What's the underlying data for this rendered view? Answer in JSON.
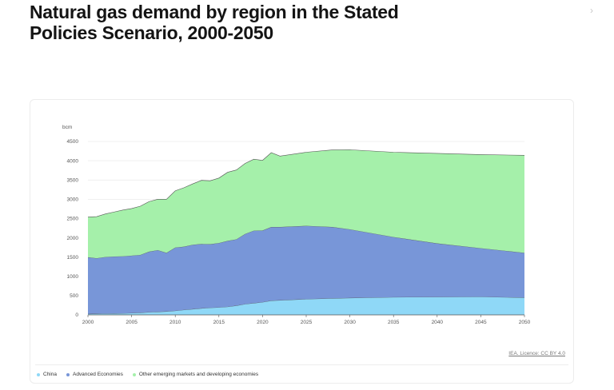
{
  "page_title": "Natural gas demand by region in the Stated Policies Scenario, 2000-2050",
  "license": "IEA. Licence: CC BY 4.0",
  "colors": {
    "china": "#8fd8f7",
    "advanced": "#7896d8",
    "other": "#a5f0aa",
    "outline": "#555555"
  },
  "chart_data": {
    "type": "area",
    "stacked": true,
    "title": "Natural gas demand by region in the Stated Policies Scenario, 2000-2050",
    "ylabel": "bcm",
    "xlabel": "",
    "ylim": [
      0,
      4500
    ],
    "yticks": [
      0,
      500,
      1000,
      1500,
      2000,
      2500,
      3000,
      3500,
      4000,
      4500
    ],
    "xticks": [
      2000,
      2005,
      2010,
      2015,
      2020,
      2025,
      2030,
      2035,
      2040,
      2045,
      2050
    ],
    "grid": true,
    "legend_position": "bottom",
    "x": [
      2000,
      2001,
      2002,
      2003,
      2004,
      2005,
      2006,
      2007,
      2008,
      2009,
      2010,
      2011,
      2012,
      2013,
      2014,
      2015,
      2016,
      2017,
      2018,
      2019,
      2020,
      2021,
      2022,
      2025,
      2028,
      2030,
      2035,
      2040,
      2045,
      2050
    ],
    "series": [
      {
        "name": "China",
        "values": [
          25,
          30,
          32,
          35,
          40,
          47,
          56,
          70,
          80,
          90,
          107,
          130,
          150,
          170,
          185,
          195,
          210,
          240,
          280,
          305,
          330,
          370,
          380,
          410,
          430,
          440,
          460,
          465,
          470,
          450
        ]
      },
      {
        "name": "Advanced Economies",
        "values": [
          1470,
          1440,
          1470,
          1480,
          1480,
          1490,
          1500,
          1570,
          1600,
          1520,
          1640,
          1640,
          1670,
          1670,
          1650,
          1670,
          1710,
          1720,
          1820,
          1880,
          1860,
          1910,
          1900,
          1900,
          1850,
          1780,
          1560,
          1390,
          1260,
          1160
        ]
      },
      {
        "name": "Other emerging markets and developing economies",
        "values": [
          1045,
          1080,
          1118,
          1155,
          1200,
          1223,
          1264,
          1300,
          1320,
          1390,
          1473,
          1530,
          1580,
          1650,
          1645,
          1685,
          1780,
          1800,
          1830,
          1855,
          1820,
          1930,
          1840,
          1910,
          2000,
          2065,
          2200,
          2335,
          2430,
          2530
        ]
      }
    ]
  }
}
